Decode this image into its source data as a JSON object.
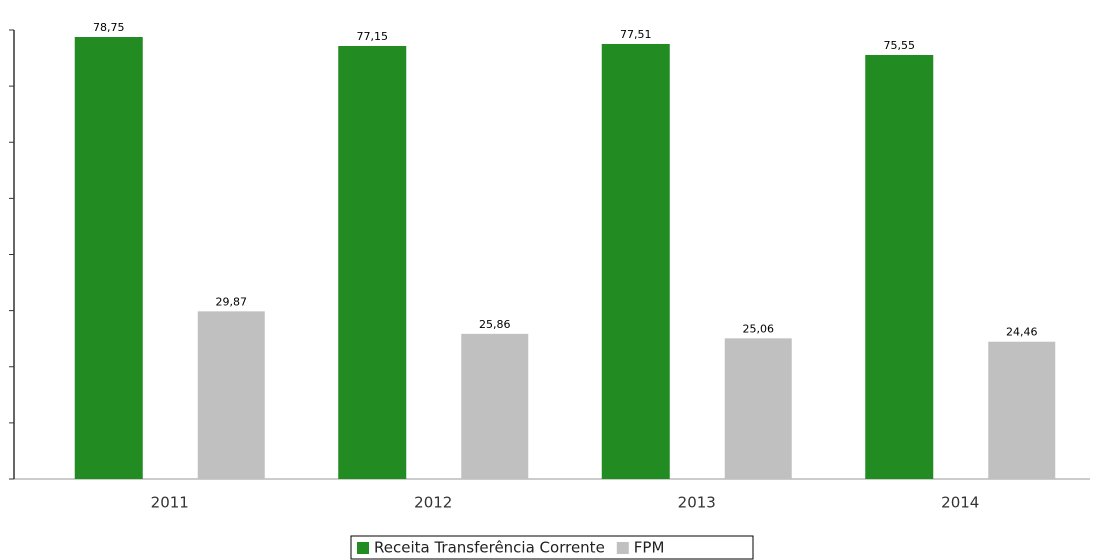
{
  "chart_data": {
    "type": "bar",
    "categories": [
      "2011",
      "2012",
      "2013",
      "2014"
    ],
    "series": [
      {
        "name": "Receita Transferência Corrente",
        "color": "#228b22",
        "values": [
          78.75,
          77.15,
          77.51,
          75.55
        ],
        "value_labels": [
          "78,75",
          "77,15",
          "77,51",
          "75,55"
        ]
      },
      {
        "name": "FPM",
        "color": "#c0c0c0",
        "values": [
          29.87,
          25.86,
          25.06,
          24.46
        ],
        "value_labels": [
          "29,87",
          "25,86",
          "25,06",
          "24,46"
        ]
      }
    ],
    "ylim": [
      0,
      80
    ],
    "yticks": [
      0,
      10,
      20,
      30,
      40,
      50,
      60,
      70,
      80
    ],
    "legend": "bottom"
  }
}
